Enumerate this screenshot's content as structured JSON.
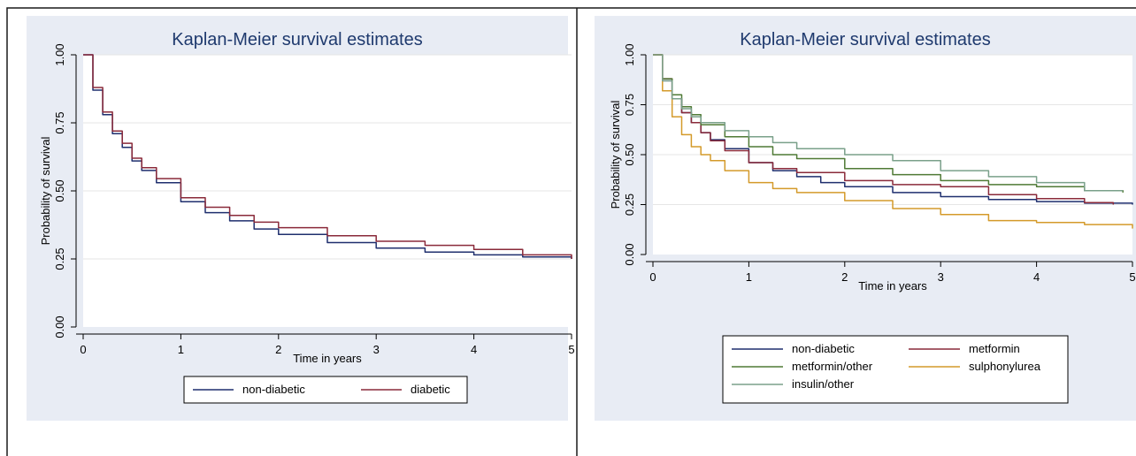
{
  "chart_data": [
    {
      "type": "line",
      "title": "Kaplan-Meier survival estimates",
      "xlabel": "Time in years",
      "ylabel": "Probability of survival",
      "xlim": [
        0,
        5
      ],
      "ylim": [
        0,
        1
      ],
      "xticks": [
        "0",
        "1",
        "2",
        "3",
        "4",
        "5"
      ],
      "yticks": [
        "0.00",
        "0.25",
        "0.50",
        "0.75",
        "1.00"
      ],
      "grid": true,
      "legend_position": "bottom",
      "series": [
        {
          "name": "non-diabetic",
          "color": "#1f2f6e",
          "x": [
            0,
            0.1,
            0.2,
            0.3,
            0.4,
            0.5,
            0.6,
            0.75,
            1.0,
            1.25,
            1.5,
            1.75,
            2.0,
            2.5,
            3.0,
            3.5,
            4.0,
            4.5,
            5.0
          ],
          "y": [
            1.0,
            0.87,
            0.78,
            0.71,
            0.66,
            0.61,
            0.575,
            0.53,
            0.46,
            0.42,
            0.39,
            0.36,
            0.34,
            0.31,
            0.29,
            0.275,
            0.265,
            0.257,
            0.25
          ]
        },
        {
          "name": "diabetic",
          "color": "#8a2a3a",
          "x": [
            0,
            0.1,
            0.2,
            0.3,
            0.4,
            0.5,
            0.6,
            0.75,
            1.0,
            1.25,
            1.5,
            1.75,
            2.0,
            2.5,
            3.0,
            3.5,
            4.0,
            4.5,
            5.0
          ],
          "y": [
            1.0,
            0.88,
            0.79,
            0.72,
            0.675,
            0.62,
            0.585,
            0.545,
            0.475,
            0.44,
            0.41,
            0.385,
            0.365,
            0.335,
            0.315,
            0.3,
            0.285,
            0.265,
            0.25
          ]
        }
      ]
    },
    {
      "type": "line",
      "title": "Kaplan-Meier survival estimates",
      "xlabel": "Time in years",
      "ylabel": "Probability of survival",
      "xlim": [
        0,
        5
      ],
      "ylim": [
        0,
        1
      ],
      "xticks": [
        "0",
        "1",
        "2",
        "3",
        "4",
        "5"
      ],
      "yticks": [
        "0.00",
        "0.25",
        "0.50",
        "0.75",
        "1.00"
      ],
      "grid": true,
      "legend_position": "bottom",
      "series": [
        {
          "name": "non-diabetic",
          "color": "#1f2f6e",
          "x": [
            0,
            0.1,
            0.2,
            0.3,
            0.4,
            0.5,
            0.6,
            0.75,
            1.0,
            1.25,
            1.5,
            1.75,
            2.0,
            2.5,
            3.0,
            3.5,
            4.0,
            4.5,
            5.0
          ],
          "y": [
            1.0,
            0.87,
            0.78,
            0.71,
            0.66,
            0.61,
            0.575,
            0.53,
            0.46,
            0.42,
            0.39,
            0.36,
            0.34,
            0.31,
            0.29,
            0.275,
            0.265,
            0.257,
            0.25
          ]
        },
        {
          "name": "metformin",
          "color": "#8a2a3a",
          "x": [
            0,
            0.1,
            0.2,
            0.3,
            0.4,
            0.5,
            0.6,
            0.75,
            1.0,
            1.25,
            1.5,
            2.0,
            2.5,
            3.0,
            3.5,
            4.0,
            4.5,
            4.8
          ],
          "y": [
            1.0,
            0.88,
            0.78,
            0.71,
            0.66,
            0.61,
            0.57,
            0.52,
            0.46,
            0.43,
            0.41,
            0.37,
            0.35,
            0.34,
            0.3,
            0.28,
            0.26,
            0.25
          ]
        },
        {
          "name": "metformin/other",
          "color": "#4f7a35",
          "x": [
            0,
            0.1,
            0.2,
            0.3,
            0.4,
            0.5,
            0.75,
            1.0,
            1.25,
            1.5,
            2.0,
            2.5,
            3.0,
            3.5,
            4.0,
            4.5,
            4.9
          ],
          "y": [
            1.0,
            0.88,
            0.8,
            0.74,
            0.7,
            0.65,
            0.59,
            0.54,
            0.5,
            0.48,
            0.43,
            0.4,
            0.37,
            0.35,
            0.34,
            0.32,
            0.31
          ]
        },
        {
          "name": "sulphonylurea",
          "color": "#d49a2a",
          "x": [
            0,
            0.1,
            0.2,
            0.3,
            0.4,
            0.5,
            0.6,
            0.75,
            1.0,
            1.25,
            1.5,
            2.0,
            2.5,
            3.0,
            3.5,
            4.0,
            4.5,
            5.0
          ],
          "y": [
            1.0,
            0.82,
            0.69,
            0.6,
            0.54,
            0.5,
            0.47,
            0.42,
            0.36,
            0.33,
            0.31,
            0.27,
            0.23,
            0.2,
            0.17,
            0.16,
            0.15,
            0.13
          ]
        },
        {
          "name": "insulin/other",
          "color": "#7aa08a",
          "x": [
            0,
            0.1,
            0.2,
            0.3,
            0.4,
            0.5,
            0.75,
            1.0,
            1.25,
            1.5,
            2.0,
            2.5,
            3.0,
            3.5,
            4.0,
            4.5,
            4.9
          ],
          "y": [
            1.0,
            0.87,
            0.78,
            0.73,
            0.69,
            0.66,
            0.62,
            0.59,
            0.56,
            0.53,
            0.5,
            0.47,
            0.42,
            0.39,
            0.36,
            0.32,
            0.32
          ]
        }
      ]
    }
  ]
}
